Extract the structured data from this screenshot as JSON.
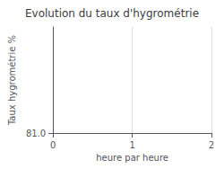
{
  "chart_data": {
    "type": "line",
    "title": "Evolution du taux d'hygrométrie",
    "xlabel": "heure par heure",
    "ylabel": "Taux hygrométrie %",
    "xlim": [
      0,
      2
    ],
    "xticks": [
      0,
      1,
      2
    ],
    "ylim": [
      81.0,
      101.0
    ],
    "yticks": [
      {
        "value": 81.0,
        "label": "81.0"
      }
    ],
    "grid": true
  }
}
